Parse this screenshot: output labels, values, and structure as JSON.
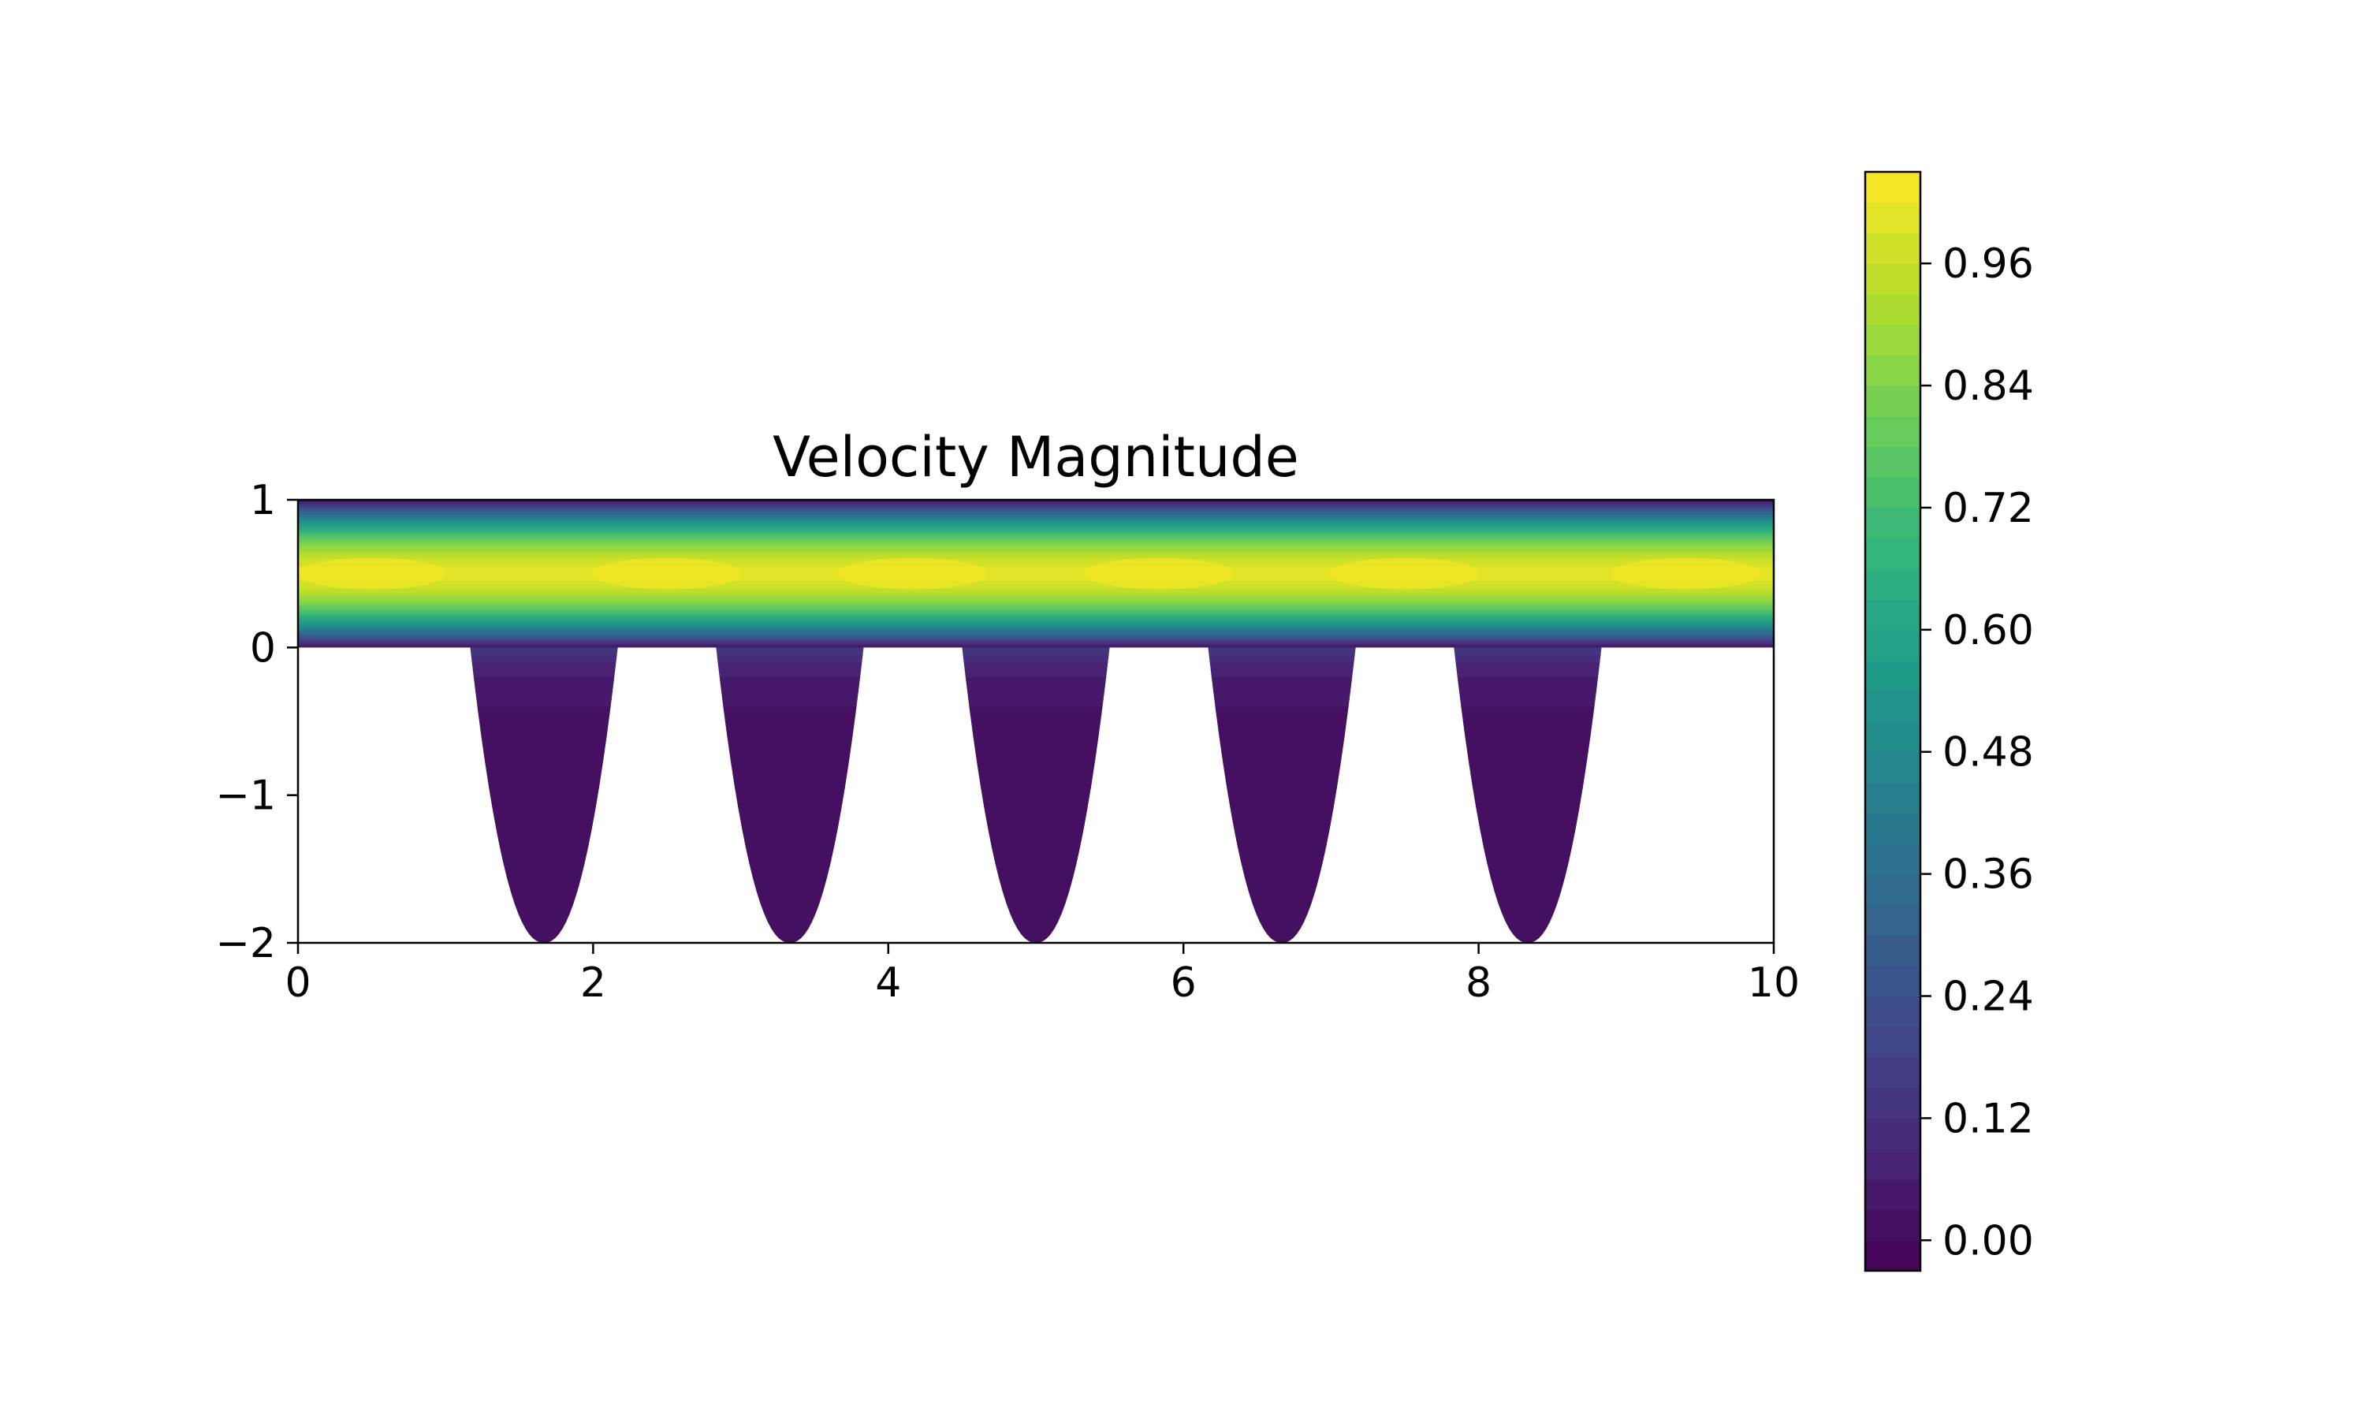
{
  "chart_data": {
    "type": "heatmap",
    "title": "Velocity Magnitude",
    "xlabel": "",
    "ylabel": "",
    "xlim": [
      0,
      10
    ],
    "ylim": [
      -2,
      1
    ],
    "x_ticks": [
      "0",
      "2",
      "4",
      "6",
      "8",
      "10"
    ],
    "y_ticks": [
      "1",
      "0",
      "−1",
      "−2"
    ],
    "colormap": "viridis",
    "colorbar": {
      "range": [
        -0.03,
        1.05
      ],
      "ticks": [
        "0.96",
        "0.84",
        "0.72",
        "0.60",
        "0.48",
        "0.36",
        "0.24",
        "0.12",
        "0.00"
      ],
      "levels": 36
    },
    "domain": {
      "channel": {
        "x": [
          0,
          10
        ],
        "y": [
          0,
          1
        ]
      },
      "cavities": [
        {
          "center_x": 1.667,
          "half_width_top": 0.5,
          "depth": -2
        },
        {
          "center_x": 3.333,
          "half_width_top": 0.5,
          "depth": -2
        },
        {
          "center_x": 5.0,
          "half_width_top": 0.5,
          "depth": -2
        },
        {
          "center_x": 6.667,
          "half_width_top": 0.5,
          "depth": -2
        },
        {
          "center_x": 8.333,
          "half_width_top": 0.5,
          "depth": -2
        }
      ]
    },
    "field": {
      "channel_profile": "parabolic",
      "max_velocity": 1.0,
      "peak_y": 0.5,
      "cavity_velocity": 0.02
    }
  },
  "colors": {
    "viridis_stops": [
      "#440154",
      "#482878",
      "#3e4989",
      "#31688e",
      "#26828e",
      "#1f9e89",
      "#35b779",
      "#6ece58",
      "#b5de2b",
      "#fde725"
    ]
  }
}
